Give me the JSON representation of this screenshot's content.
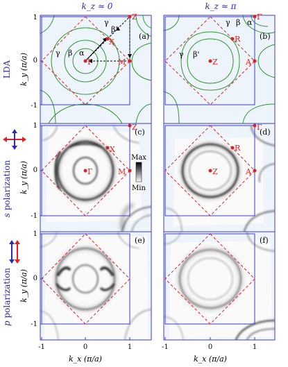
{
  "columns": [
    {
      "id": "kz0",
      "header": "k_z ≈ 0"
    },
    {
      "id": "kzpi",
      "header": "k_z ≈ π"
    }
  ],
  "rows": [
    {
      "id": "lda",
      "side_label": "LDA"
    },
    {
      "id": "spol",
      "side_label_prefix": "s",
      "side_label_rest": " polarization"
    },
    {
      "id": "ppol",
      "side_label_prefix": "p",
      "side_label_rest": " polarization"
    }
  ],
  "panel_letters": [
    "(a)",
    "(b)",
    "(c)",
    "(d)",
    "(e)",
    "(f)"
  ],
  "axes": {
    "ylabel": "k_y (π/a)",
    "xlabel": "k_x (π/a)",
    "x_ticks": [
      "-1",
      "0",
      "1"
    ],
    "y_ticks": [
      "1",
      "0",
      "-1"
    ]
  },
  "high_symmetry_points": {
    "a": [
      {
        "label": "Γ",
        "kx": 0,
        "ky": 0
      },
      {
        "label": "Z",
        "kx": 1,
        "ky": 1
      },
      {
        "label": "X",
        "kx": 0.5,
        "ky": 0.5
      },
      {
        "label": "M",
        "kx": 1,
        "ky": 0
      }
    ],
    "b": [
      {
        "label": "Z",
        "kx": 0,
        "ky": 0
      },
      {
        "label": "Γ",
        "kx": 1,
        "ky": 1
      },
      {
        "label": "R",
        "kx": 0.5,
        "ky": 0.5
      },
      {
        "label": "A",
        "kx": 1,
        "ky": 0
      }
    ],
    "c": [
      {
        "label": "Γ",
        "kx": 0,
        "ky": 0
      },
      {
        "label": "Z",
        "kx": 1,
        "ky": 1
      },
      {
        "label": "X",
        "kx": 0.5,
        "ky": 0.5
      },
      {
        "label": "M",
        "kx": 1,
        "ky": 0
      }
    ],
    "d": [
      {
        "label": "Z",
        "kx": 0,
        "ky": 0
      },
      {
        "label": "Γ",
        "kx": 1,
        "ky": 1
      },
      {
        "label": "R",
        "kx": 0.5,
        "ky": 0.5
      },
      {
        "label": "A",
        "kx": 1,
        "ky": 0
      }
    ]
  },
  "band_labels": {
    "a": [
      "γ",
      "β",
      "α",
      "γ",
      "β'"
    ],
    "b": [
      "γ",
      "β",
      "α",
      "γ",
      "β'"
    ]
  },
  "colorbar": {
    "max_label": "Max",
    "min_label": "Min"
  },
  "colors": {
    "frame_blue": "#3a3ad0",
    "bz_red": "#e02020",
    "fs_green": "#2a9a2a",
    "header_blue": "#2a2ab0",
    "arrow_red": "#e02020",
    "arrow_blue": "#2a2ab8"
  }
}
